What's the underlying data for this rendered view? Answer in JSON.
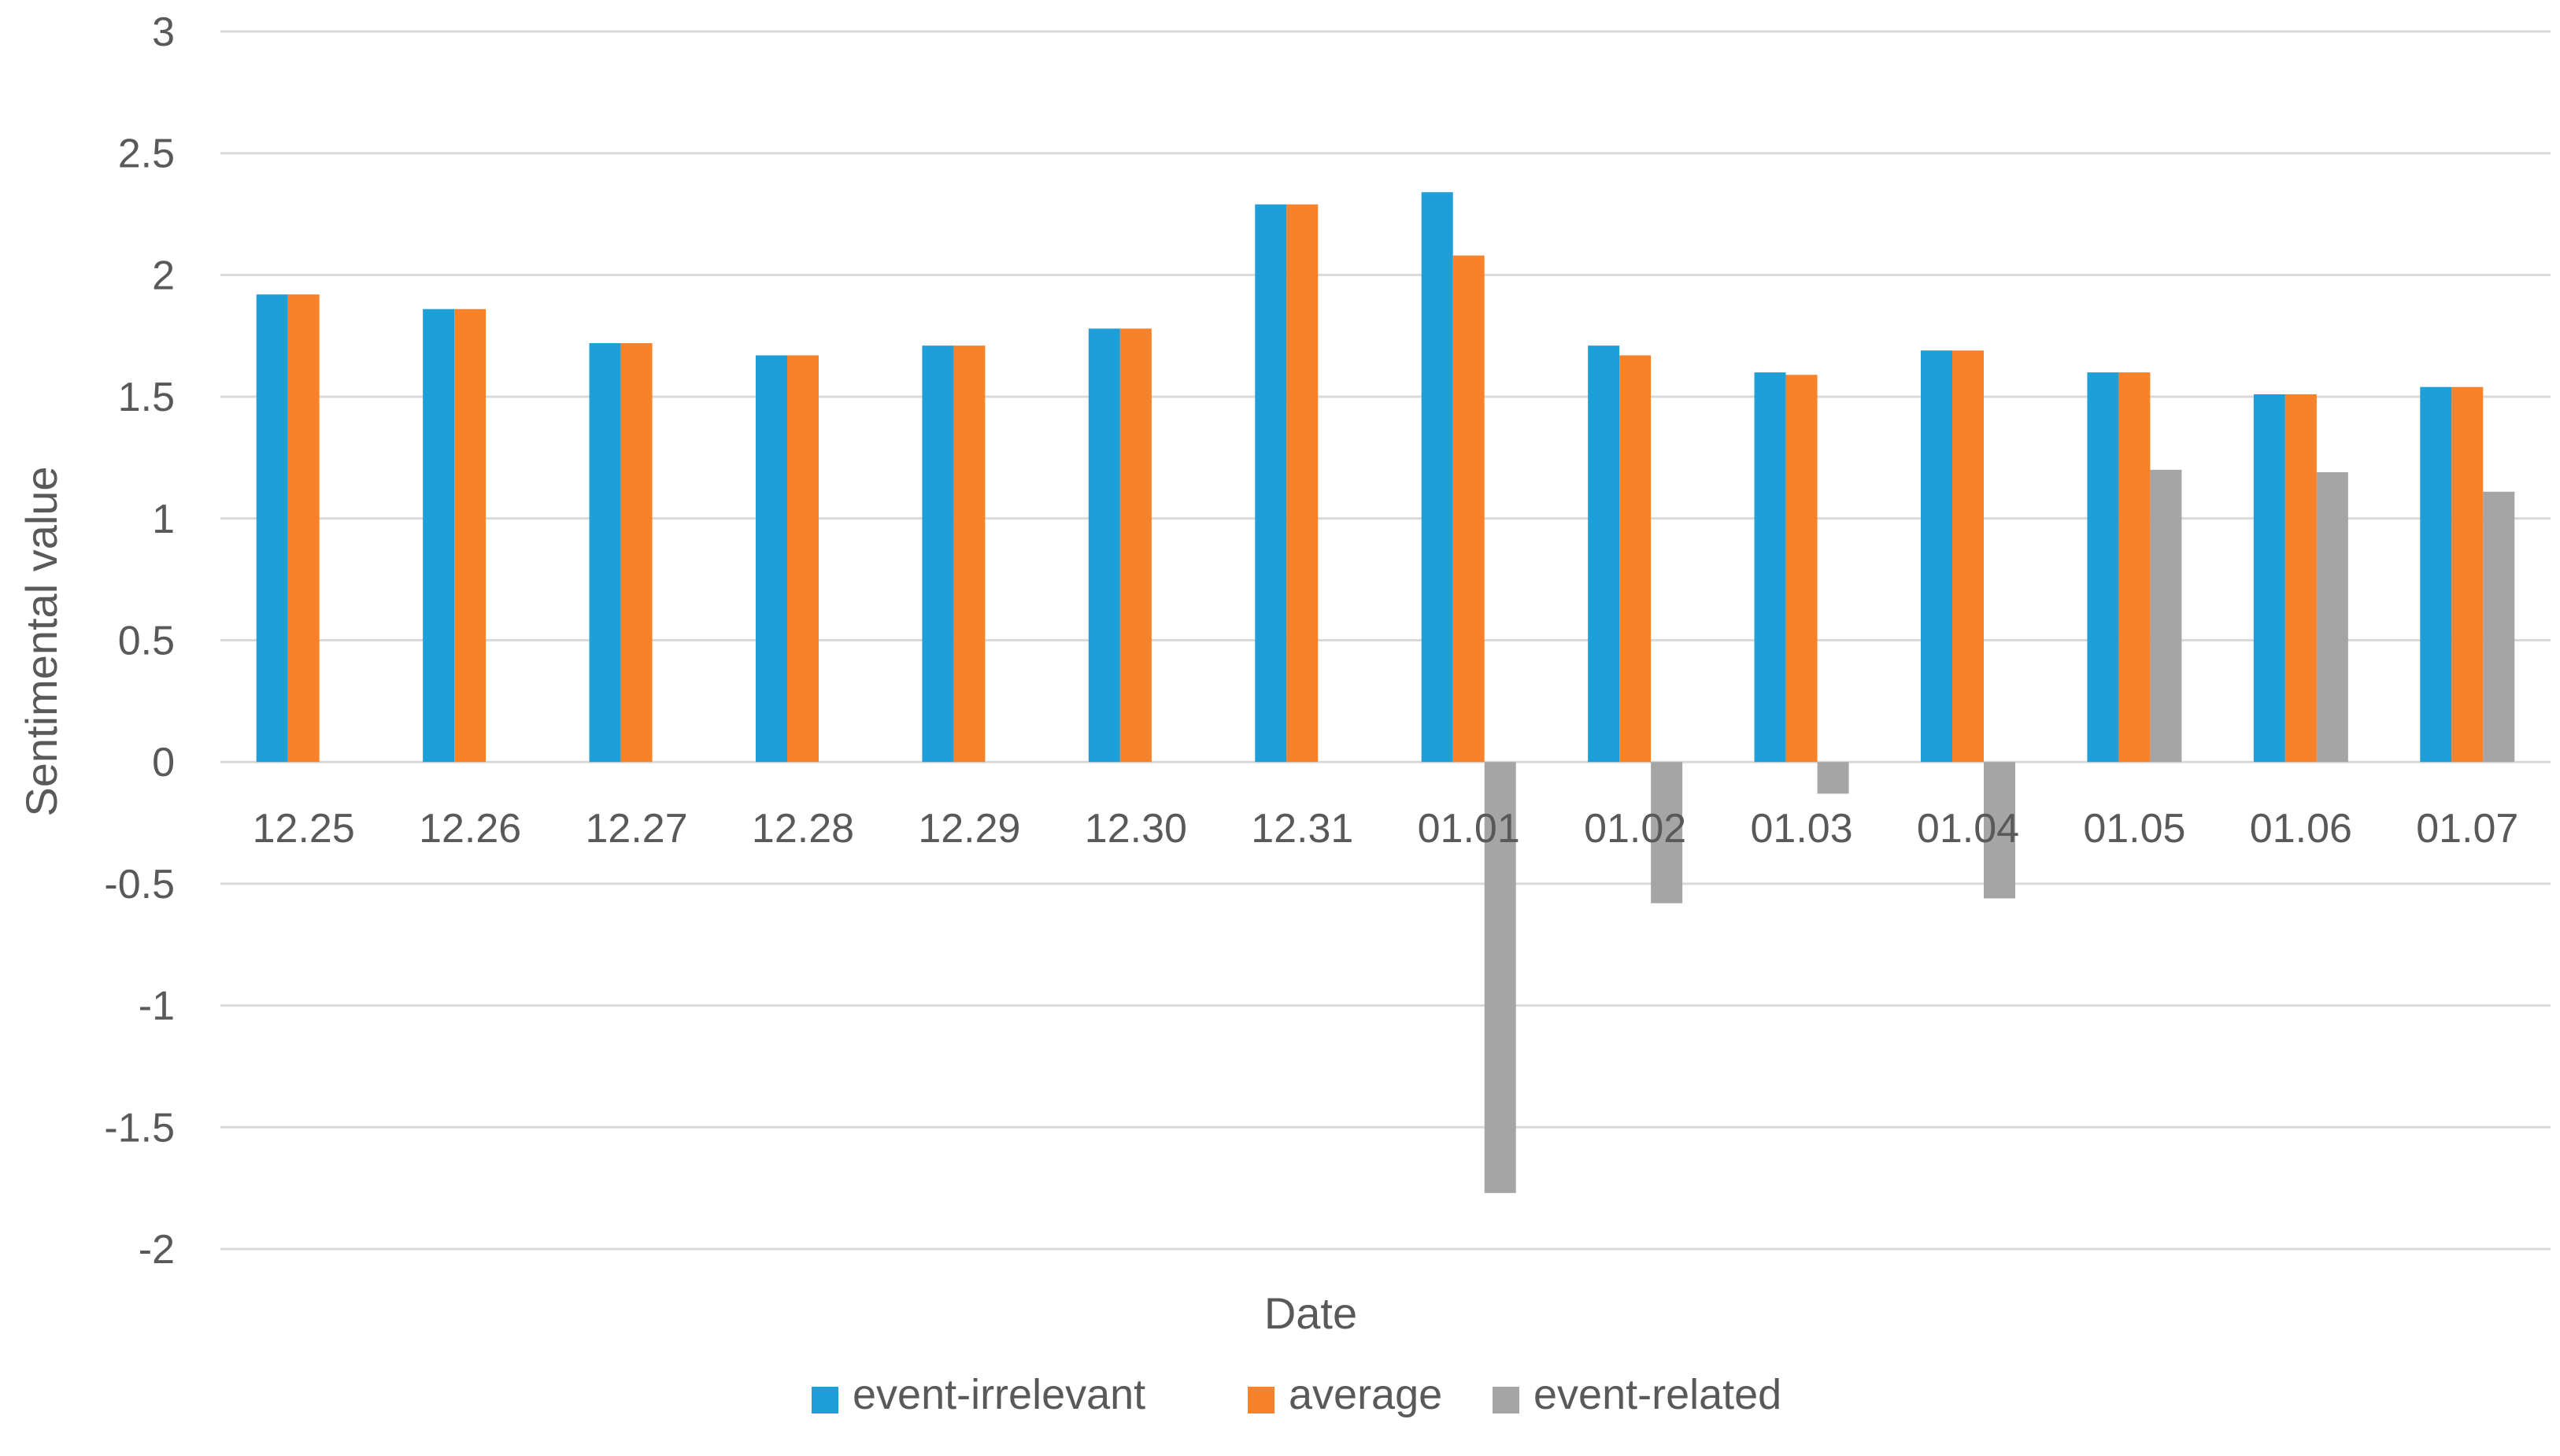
{
  "chart_data": {
    "type": "bar",
    "title": "",
    "xlabel": "Date",
    "ylabel": "Sentimental value",
    "ylim": [
      -2,
      3
    ],
    "yticks": [
      3,
      2.5,
      2,
      1.5,
      1,
      0.5,
      0,
      -0.5,
      -1,
      -1.5,
      -2
    ],
    "ytick_labels": [
      "3",
      "2.5",
      "2",
      "1.5",
      "1",
      "0.5",
      "0",
      "-0.5",
      "-1",
      "-1.5",
      "-2"
    ],
    "grid": true,
    "legend_position": "bottom",
    "categories": [
      "12.25",
      "12.26",
      "12.27",
      "12.28",
      "12.29",
      "12.30",
      "12.31",
      "01.01",
      "01.02",
      "01.03",
      "01.04",
      "01.05",
      "01.06",
      "01.07"
    ],
    "series": [
      {
        "name": "event-irrelevant",
        "color": "#1f9fd8",
        "values": [
          1.92,
          1.86,
          1.72,
          1.67,
          1.71,
          1.78,
          2.29,
          2.34,
          1.71,
          1.6,
          1.69,
          1.6,
          1.51,
          1.54
        ]
      },
      {
        "name": "average",
        "color": "#f7822a",
        "values": [
          1.92,
          1.86,
          1.72,
          1.67,
          1.71,
          1.78,
          2.29,
          2.08,
          1.67,
          1.59,
          1.69,
          1.6,
          1.51,
          1.54
        ]
      },
      {
        "name": "event-related",
        "color": "#a5a5a5",
        "values": [
          null,
          null,
          null,
          null,
          null,
          null,
          null,
          -1.77,
          -0.58,
          -0.13,
          -0.56,
          1.2,
          1.19,
          1.11
        ]
      }
    ]
  }
}
